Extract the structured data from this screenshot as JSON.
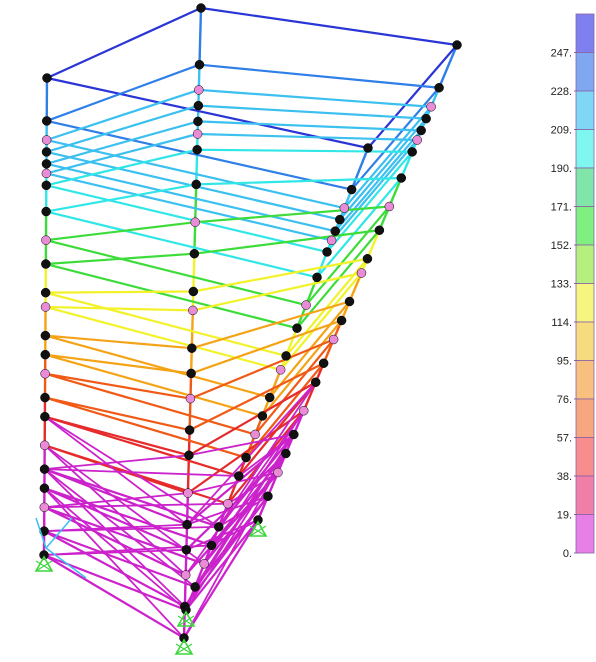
{
  "legend": {
    "labels": [
      "247.",
      "228.",
      "209.",
      "190.",
      "171.",
      "152.",
      "133.",
      "114.",
      "95.",
      "76.",
      "57.",
      "38.",
      "19.",
      "0."
    ],
    "colors": [
      "#7f7fef",
      "#7fa8f0",
      "#7fd6f5",
      "#7ff7f0",
      "#7fe5a8",
      "#7ff07f",
      "#b5f07f",
      "#f5f57f",
      "#f7dc7f",
      "#f7c07f",
      "#f7a77f",
      "#f78d8d",
      "#f07fa8",
      "#e67fe6"
    ]
  },
  "model": {
    "color_scale": {
      "top": "#2a35d6",
      "blue": "#2f7fe8",
      "sky": "#3bc0f0",
      "cyan": "#31e6e6",
      "green": "#3ddc3a",
      "yellow": "#f2f22a",
      "orange": "#f5a316",
      "red_orange": "#f05a16",
      "red": "#e52b2b",
      "magenta": "#cc22cc"
    },
    "node_color": "#111111",
    "hinge_color": "#e98bd6",
    "support_color": "#3fd63f",
    "axis_colors": {
      "x": "#37c0f0",
      "y": "#37c0f0",
      "z": "#37c0f0"
    }
  }
}
